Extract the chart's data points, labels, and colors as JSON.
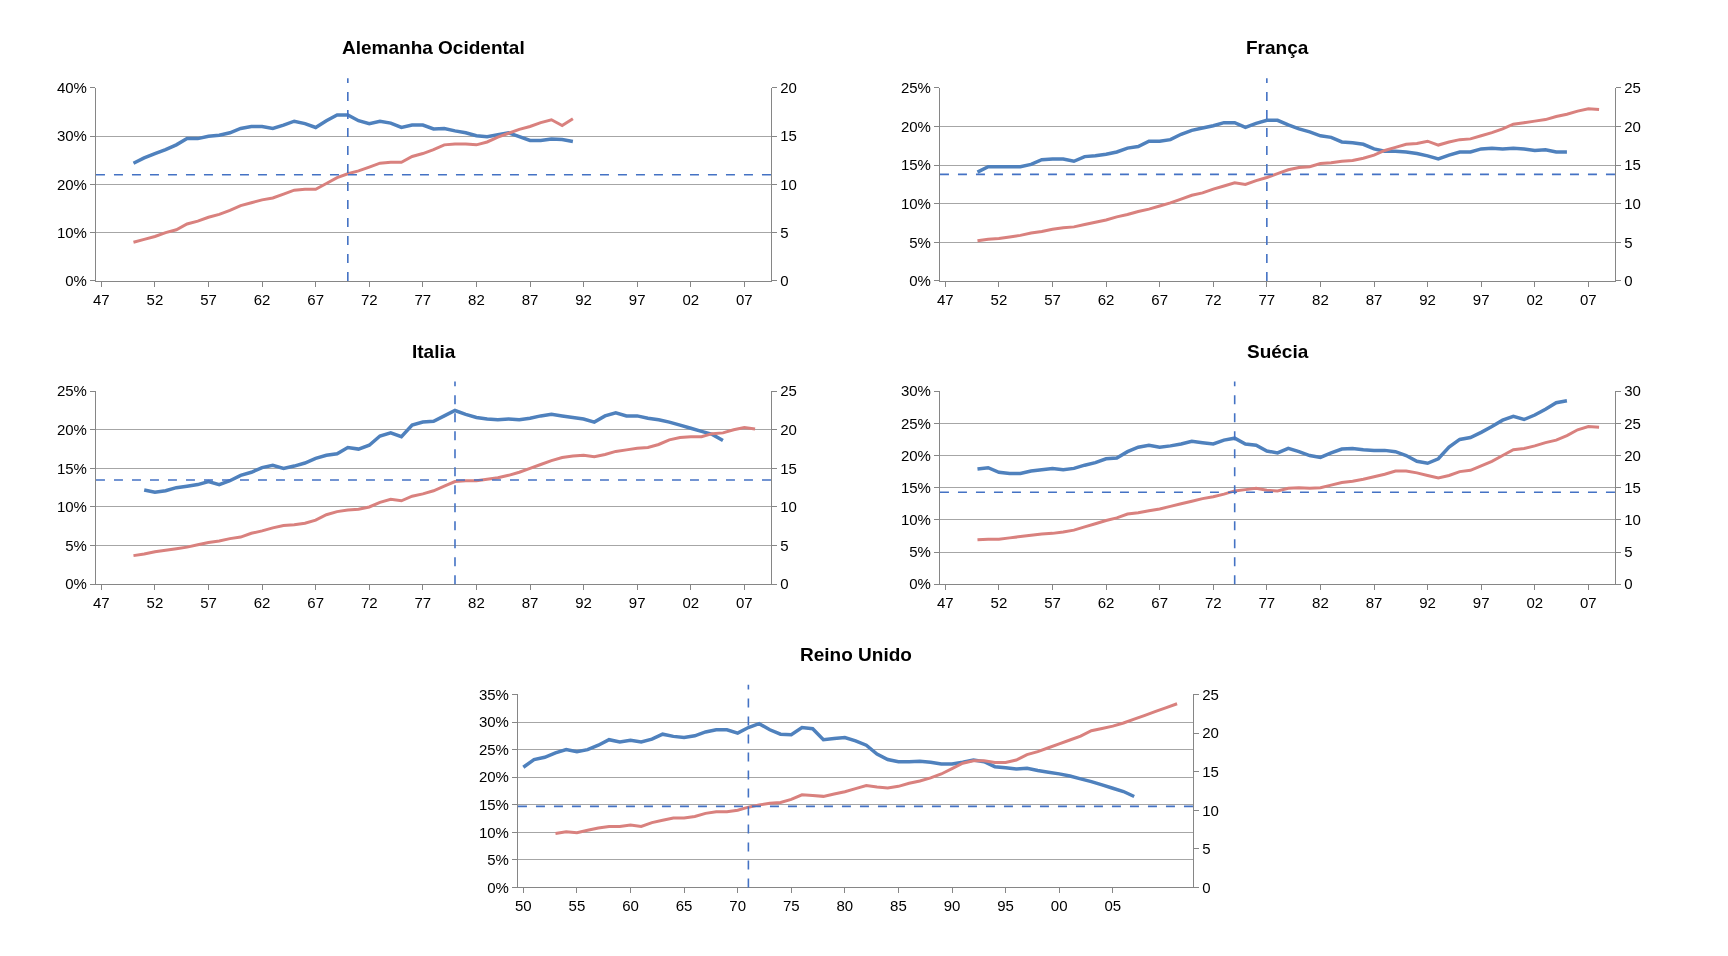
{
  "chart_data": [
    {
      "type": "line",
      "title": "Alemanha Ocidental",
      "grid": "y",
      "x": [
        1950,
        1951,
        1952,
        1953,
        1954,
        1955,
        1956,
        1957,
        1958,
        1959,
        1960,
        1961,
        1962,
        1963,
        1964,
        1965,
        1966,
        1967,
        1968,
        1969,
        1970,
        1971,
        1972,
        1973,
        1974,
        1975,
        1976,
        1977,
        1978,
        1979,
        1980,
        1981,
        1982,
        1983,
        1984,
        1985,
        1986,
        1987,
        1988,
        1989,
        1990,
        1991
      ],
      "xlim": [
        1946.5,
        2009.5
      ],
      "xticks": [
        {
          "value": 1947,
          "label": "47"
        },
        {
          "value": 1952,
          "label": "52"
        },
        {
          "value": 1957,
          "label": "57"
        },
        {
          "value": 1962,
          "label": "62"
        },
        {
          "value": 1967,
          "label": "67"
        },
        {
          "value": 1972,
          "label": "72"
        },
        {
          "value": 1977,
          "label": "77"
        },
        {
          "value": 1982,
          "label": "82"
        },
        {
          "value": 1987,
          "label": "87"
        },
        {
          "value": 1992,
          "label": "92"
        },
        {
          "value": 1997,
          "label": "97"
        },
        {
          "value": 2002,
          "label": "02"
        },
        {
          "value": 2007,
          "label": "07"
        }
      ],
      "ylim": [
        0,
        40
      ],
      "yticks": [
        {
          "value": 0,
          "label": "0%"
        },
        {
          "value": 10,
          "label": "10%"
        },
        {
          "value": 20,
          "label": "20%"
        },
        {
          "value": 30,
          "label": "30%"
        },
        {
          "value": 40,
          "label": "40%"
        }
      ],
      "y2lim": [
        0,
        20
      ],
      "y2ticks": [
        0,
        5,
        10,
        15,
        20
      ],
      "series": [
        {
          "color": "#4f81bd",
          "values": [
            24.4,
            25.5,
            26.4,
            27.2,
            28.2,
            29.5,
            29.5,
            30,
            30.2,
            30.7,
            31.6,
            32,
            32,
            31.6,
            32.3,
            33.1,
            32.6,
            31.8,
            33.2,
            34.4,
            34.4,
            33.2,
            32.6,
            33.1,
            32.7,
            31.8,
            32.3,
            32.3,
            31.5,
            31.6,
            31.1,
            30.7,
            30.1,
            29.9,
            30.3,
            30.7,
            29.9,
            29.1,
            29.1,
            29.4,
            29.3,
            28.9
          ]
        },
        {
          "color": "#d9817e",
          "axis": "y2",
          "values": [
            4.0,
            4.3,
            4.6,
            5.0,
            5.3,
            5.9,
            6.2,
            6.6,
            6.9,
            7.3,
            7.8,
            8.1,
            8.4,
            8.6,
            9.0,
            9.4,
            9.5,
            9.5,
            10.1,
            10.7,
            11.1,
            11.4,
            11.8,
            12.2,
            12.3,
            12.3,
            12.9,
            13.2,
            13.6,
            14.1,
            14.2,
            14.2,
            14.1,
            14.4,
            14.9,
            15.3,
            15.7,
            16.0,
            16.4,
            16.7,
            16.1,
            16.8
          ]
        }
      ],
      "ref_lines": [
        {
          "axis": "x",
          "value": 1970,
          "color": "#4472c4",
          "line_style": "dashed"
        },
        {
          "axis": "y2",
          "value": 11,
          "color": "#4472c4",
          "line_style": "dashed"
        }
      ]
    },
    {
      "type": "line",
      "title": "França",
      "grid": "y",
      "x": [
        1950,
        1951,
        1952,
        1953,
        1954,
        1955,
        1956,
        1957,
        1958,
        1959,
        1960,
        1961,
        1962,
        1963,
        1964,
        1965,
        1966,
        1967,
        1968,
        1969,
        1970,
        1971,
        1972,
        1973,
        1974,
        1975,
        1976,
        1977,
        1978,
        1979,
        1980,
        1981,
        1982,
        1983,
        1984,
        1985,
        1986,
        1987,
        1988,
        1989,
        1990,
        1991,
        1992,
        1993,
        1994,
        1995,
        1996,
        1997,
        1998,
        1999,
        2000,
        2001,
        2002,
        2003,
        2004,
        2005,
        2006,
        2007,
        2008
      ],
      "xlim": [
        1946.5,
        2009.5
      ],
      "xticks": [
        {
          "value": 1947,
          "label": "47"
        },
        {
          "value": 1952,
          "label": "52"
        },
        {
          "value": 1957,
          "label": "57"
        },
        {
          "value": 1962,
          "label": "62"
        },
        {
          "value": 1967,
          "label": "67"
        },
        {
          "value": 1972,
          "label": "72"
        },
        {
          "value": 1977,
          "label": "77"
        },
        {
          "value": 1982,
          "label": "82"
        },
        {
          "value": 1987,
          "label": "87"
        },
        {
          "value": 1992,
          "label": "92"
        },
        {
          "value": 1997,
          "label": "97"
        },
        {
          "value": 2002,
          "label": "02"
        },
        {
          "value": 2007,
          "label": "07"
        }
      ],
      "ylim": [
        0,
        25
      ],
      "yticks": [
        {
          "value": 0,
          "label": "0%"
        },
        {
          "value": 5,
          "label": "5%"
        },
        {
          "value": 10,
          "label": "10%"
        },
        {
          "value": 15,
          "label": "15%"
        },
        {
          "value": 20,
          "label": "20%"
        },
        {
          "value": 25,
          "label": "25%"
        }
      ],
      "y2lim": [
        0,
        25
      ],
      "y2ticks": [
        0,
        5,
        10,
        15,
        20,
        25
      ],
      "series": [
        {
          "color": "#4f81bd",
          "values": [
            14.1,
            14.8,
            14.8,
            14.8,
            14.8,
            15.1,
            15.7,
            15.8,
            15.8,
            15.5,
            16.1,
            16.2,
            16.4,
            16.7,
            17.2,
            17.4,
            18.1,
            18.1,
            18.3,
            19.0,
            19.5,
            19.8,
            20.1,
            20.5,
            20.5,
            19.9,
            20.4,
            20.8,
            20.8,
            20.2,
            19.7,
            19.3,
            18.8,
            18.6,
            18.0,
            17.9,
            17.7,
            17.1,
            16.8,
            16.8,
            16.7,
            16.5,
            16.2,
            15.8,
            16.3,
            16.7,
            16.7,
            17.1,
            17.2,
            17.1,
            17.2,
            17.1,
            16.9,
            17.0,
            16.7,
            16.7,
            null,
            null,
            null
          ]
        },
        {
          "color": "#d9817e",
          "axis": "y2",
          "values": [
            5.2,
            5.4,
            5.5,
            5.7,
            5.9,
            6.2,
            6.4,
            6.7,
            6.9,
            7.0,
            7.3,
            7.6,
            7.9,
            8.3,
            8.6,
            9.0,
            9.3,
            9.7,
            10.1,
            10.6,
            11.1,
            11.4,
            11.9,
            12.3,
            12.7,
            12.5,
            13.0,
            13.4,
            13.9,
            14.4,
            14.7,
            14.8,
            15.2,
            15.3,
            15.5,
            15.6,
            15.9,
            16.3,
            16.9,
            17.3,
            17.7,
            17.8,
            18.1,
            17.6,
            18.0,
            18.3,
            18.4,
            18.8,
            19.2,
            19.7,
            20.3,
            20.5,
            20.7,
            20.9,
            21.3,
            21.6,
            22.0,
            22.3,
            22.2
          ]
        }
      ],
      "ref_lines": [
        {
          "axis": "x",
          "value": 1977,
          "color": "#4472c4",
          "line_style": "dashed"
        },
        {
          "axis": "y2",
          "value": 13.8,
          "color": "#4472c4",
          "line_style": "dashed"
        }
      ]
    },
    {
      "type": "line",
      "title": "Italia",
      "grid": "y",
      "x": [
        1950,
        1951,
        1952,
        1953,
        1954,
        1955,
        1956,
        1957,
        1958,
        1959,
        1960,
        1961,
        1962,
        1963,
        1964,
        1965,
        1966,
        1967,
        1968,
        1969,
        1970,
        1971,
        1972,
        1973,
        1974,
        1975,
        1976,
        1977,
        1978,
        1979,
        1980,
        1981,
        1982,
        1983,
        1984,
        1985,
        1986,
        1987,
        1988,
        1989,
        1990,
        1991,
        1992,
        1993,
        1994,
        1995,
        1996,
        1997,
        1998,
        1999,
        2000,
        2001,
        2002,
        2003,
        2004,
        2005,
        2006,
        2007,
        2008
      ],
      "xlim": [
        1946.5,
        2009.5
      ],
      "xticks": [
        {
          "value": 1947,
          "label": "47"
        },
        {
          "value": 1952,
          "label": "52"
        },
        {
          "value": 1957,
          "label": "57"
        },
        {
          "value": 1962,
          "label": "62"
        },
        {
          "value": 1967,
          "label": "67"
        },
        {
          "value": 1972,
          "label": "72"
        },
        {
          "value": 1977,
          "label": "77"
        },
        {
          "value": 1982,
          "label": "82"
        },
        {
          "value": 1987,
          "label": "87"
        },
        {
          "value": 1992,
          "label": "92"
        },
        {
          "value": 1997,
          "label": "97"
        },
        {
          "value": 2002,
          "label": "02"
        },
        {
          "value": 2007,
          "label": "07"
        }
      ],
      "ylim": [
        0,
        25
      ],
      "yticks": [
        {
          "value": 0,
          "label": "0%"
        },
        {
          "value": 5,
          "label": "5%"
        },
        {
          "value": 10,
          "label": "10%"
        },
        {
          "value": 15,
          "label": "15%"
        },
        {
          "value": 20,
          "label": "20%"
        },
        {
          "value": 25,
          "label": "25%"
        }
      ],
      "y2lim": [
        0,
        25
      ],
      "y2ticks": [
        0,
        5,
        10,
        15,
        20,
        25
      ],
      "series": [
        {
          "color": "#4f81bd",
          "values": [
            null,
            12.2,
            11.9,
            12.1,
            12.5,
            12.7,
            12.9,
            13.3,
            12.9,
            13.4,
            14.1,
            14.5,
            15.1,
            15.4,
            15.0,
            15.3,
            15.7,
            16.3,
            16.7,
            16.9,
            17.7,
            17.5,
            18.0,
            19.2,
            19.6,
            19.1,
            20.6,
            21.0,
            21.1,
            21.8,
            22.5,
            22.0,
            21.6,
            21.4,
            21.3,
            21.4,
            21.3,
            21.5,
            21.8,
            22.0,
            21.8,
            21.6,
            21.4,
            21.0,
            21.8,
            22.2,
            21.8,
            21.8,
            21.5,
            21.3,
            21.0,
            20.6,
            20.2,
            19.8,
            19.4,
            18.6,
            null,
            null,
            null
          ]
        },
        {
          "color": "#d9817e",
          "axis": "y2",
          "values": [
            3.7,
            3.9,
            4.2,
            4.4,
            4.6,
            4.8,
            5.1,
            5.4,
            5.6,
            5.9,
            6.1,
            6.6,
            6.9,
            7.3,
            7.6,
            7.7,
            7.9,
            8.3,
            9.0,
            9.4,
            9.6,
            9.7,
            10.0,
            10.6,
            11.0,
            10.8,
            11.4,
            11.7,
            12.1,
            12.7,
            13.3,
            13.4,
            13.4,
            13.6,
            13.8,
            14.1,
            14.5,
            15.0,
            15.5,
            16.0,
            16.4,
            16.6,
            16.7,
            16.5,
            16.8,
            17.2,
            17.4,
            17.6,
            17.7,
            18.1,
            18.7,
            19.0,
            19.1,
            19.1,
            19.5,
            19.6,
            20.0,
            20.3,
            20.1
          ]
        }
      ],
      "ref_lines": [
        {
          "axis": "x",
          "value": 1980,
          "color": "#4472c4",
          "line_style": "dashed"
        },
        {
          "axis": "y2",
          "value": 13.5,
          "color": "#4472c4",
          "line_style": "dashed"
        }
      ]
    },
    {
      "type": "line",
      "title": "Suécia",
      "grid": "y",
      "x": [
        1950,
        1951,
        1952,
        1953,
        1954,
        1955,
        1956,
        1957,
        1958,
        1959,
        1960,
        1961,
        1962,
        1963,
        1964,
        1965,
        1966,
        1967,
        1968,
        1969,
        1970,
        1971,
        1972,
        1973,
        1974,
        1975,
        1976,
        1977,
        1978,
        1979,
        1980,
        1981,
        1982,
        1983,
        1984,
        1985,
        1986,
        1987,
        1988,
        1989,
        1990,
        1991,
        1992,
        1993,
        1994,
        1995,
        1996,
        1997,
        1998,
        1999,
        2000,
        2001,
        2002,
        2003,
        2004,
        2005,
        2006,
        2007,
        2008
      ],
      "xlim": [
        1946.5,
        2009.5
      ],
      "xticks": [
        {
          "value": 1947,
          "label": "47"
        },
        {
          "value": 1952,
          "label": "52"
        },
        {
          "value": 1957,
          "label": "57"
        },
        {
          "value": 1962,
          "label": "62"
        },
        {
          "value": 1967,
          "label": "67"
        },
        {
          "value": 1972,
          "label": "72"
        },
        {
          "value": 1977,
          "label": "77"
        },
        {
          "value": 1982,
          "label": "82"
        },
        {
          "value": 1987,
          "label": "87"
        },
        {
          "value": 1992,
          "label": "92"
        },
        {
          "value": 1997,
          "label": "97"
        },
        {
          "value": 2002,
          "label": "02"
        },
        {
          "value": 2007,
          "label": "07"
        }
      ],
      "ylim": [
        0,
        30
      ],
      "yticks": [
        {
          "value": 0,
          "label": "0%"
        },
        {
          "value": 5,
          "label": "5%"
        },
        {
          "value": 10,
          "label": "10%"
        },
        {
          "value": 15,
          "label": "15%"
        },
        {
          "value": 20,
          "label": "20%"
        },
        {
          "value": 25,
          "label": "25%"
        },
        {
          "value": 30,
          "label": "30%"
        }
      ],
      "y2lim": [
        0,
        30
      ],
      "y2ticks": [
        0,
        5,
        10,
        15,
        20,
        25,
        30
      ],
      "series": [
        {
          "color": "#4f81bd",
          "values": [
            17.9,
            18.1,
            17.4,
            17.2,
            17.2,
            17.6,
            17.8,
            18.0,
            17.8,
            18.0,
            18.5,
            18.9,
            19.5,
            19.6,
            20.6,
            21.3,
            21.6,
            21.3,
            21.5,
            21.8,
            22.2,
            22.0,
            21.8,
            22.4,
            22.7,
            21.8,
            21.6,
            20.7,
            20.4,
            21.1,
            20.6,
            20.0,
            19.7,
            20.4,
            21.0,
            21.1,
            20.9,
            20.8,
            20.8,
            20.6,
            20.0,
            19.1,
            18.8,
            19.5,
            21.3,
            22.5,
            22.8,
            23.6,
            24.5,
            25.5,
            26.1,
            25.6,
            26.3,
            27.2,
            28.2,
            28.5,
            null,
            null,
            null
          ]
        },
        {
          "color": "#d9817e",
          "axis": "y2",
          "values": [
            6.9,
            7.0,
            7.0,
            7.2,
            7.4,
            7.6,
            7.8,
            7.9,
            8.1,
            8.4,
            8.9,
            9.4,
            9.9,
            10.3,
            10.9,
            11.1,
            11.4,
            11.7,
            12.1,
            12.5,
            12.9,
            13.3,
            13.6,
            14.0,
            14.5,
            14.7,
            14.9,
            14.6,
            14.5,
            14.9,
            15.0,
            14.9,
            15.0,
            15.4,
            15.8,
            16.0,
            16.3,
            16.7,
            17.1,
            17.6,
            17.6,
            17.3,
            16.9,
            16.5,
            16.9,
            17.5,
            17.7,
            18.4,
            19.1,
            20.0,
            20.9,
            21.1,
            21.5,
            22.0,
            22.4,
            23.1,
            24.0,
            24.5,
            24.4
          ]
        }
      ],
      "ref_lines": [
        {
          "axis": "x",
          "value": 1974,
          "color": "#4472c4",
          "line_style": "dashed"
        },
        {
          "axis": "y2",
          "value": 14.3,
          "color": "#4472c4",
          "line_style": "dashed"
        }
      ]
    },
    {
      "type": "line",
      "title": "Reino Unido",
      "grid": "y",
      "x": [
        1950,
        1951,
        1952,
        1953,
        1954,
        1955,
        1956,
        1957,
        1958,
        1959,
        1960,
        1961,
        1962,
        1963,
        1964,
        1965,
        1966,
        1967,
        1968,
        1969,
        1970,
        1971,
        1972,
        1973,
        1974,
        1975,
        1976,
        1977,
        1978,
        1979,
        1980,
        1981,
        1982,
        1983,
        1984,
        1985,
        1986,
        1987,
        1988,
        1989,
        1990,
        1991,
        1992,
        1993,
        1994,
        1995,
        1996,
        1997,
        1998,
        1999,
        2000,
        2001,
        2002,
        2003,
        2004,
        2005,
        2006,
        2007,
        2008,
        2009,
        2010,
        2011
      ],
      "xlim": [
        1949.5,
        2012.5
      ],
      "xticks": [
        {
          "value": 1950,
          "label": "50"
        },
        {
          "value": 1955,
          "label": "55"
        },
        {
          "value": 1960,
          "label": "60"
        },
        {
          "value": 1965,
          "label": "65"
        },
        {
          "value": 1970,
          "label": "70"
        },
        {
          "value": 1975,
          "label": "75"
        },
        {
          "value": 1980,
          "label": "80"
        },
        {
          "value": 1985,
          "label": "85"
        },
        {
          "value": 1990,
          "label": "90"
        },
        {
          "value": 1995,
          "label": "95"
        },
        {
          "value": 2000,
          "label": "00"
        },
        {
          "value": 2005,
          "label": "05"
        }
      ],
      "ylim": [
        0,
        35
      ],
      "yticks": [
        {
          "value": 0,
          "label": "0%"
        },
        {
          "value": 5,
          "label": "5%"
        },
        {
          "value": 10,
          "label": "10%"
        },
        {
          "value": 15,
          "label": "15%"
        },
        {
          "value": 20,
          "label": "20%"
        },
        {
          "value": 25,
          "label": "25%"
        },
        {
          "value": 30,
          "label": "30%"
        },
        {
          "value": 35,
          "label": "35%"
        }
      ],
      "y2lim": [
        0,
        25
      ],
      "y2ticks": [
        0,
        5,
        10,
        15,
        20,
        25
      ],
      "series": [
        {
          "color": "#4f81bd",
          "values": [
            21.8,
            23.2,
            23.6,
            24.4,
            25.0,
            24.6,
            25.0,
            25.8,
            26.8,
            26.4,
            26.7,
            26.4,
            26.9,
            27.8,
            27.4,
            27.2,
            27.5,
            28.2,
            28.6,
            28.6,
            28.0,
            29.0,
            29.7,
            28.6,
            27.8,
            27.7,
            29.0,
            28.8,
            26.8,
            27.0,
            27.2,
            26.6,
            25.8,
            24.2,
            23.2,
            22.8,
            22.8,
            22.9,
            22.7,
            22.4,
            22.4,
            22.7,
            23.1,
            22.8,
            21.9,
            21.7,
            21.5,
            21.6,
            21.2,
            20.9,
            20.6,
            20.2,
            19.7,
            19.2,
            18.6,
            18.0,
            17.4,
            16.5,
            null,
            null,
            null,
            null
          ]
        },
        {
          "color": "#d9817e",
          "axis": "y2",
          "values": [
            null,
            null,
            null,
            7.0,
            7.2,
            7.1,
            7.4,
            7.7,
            7.9,
            7.9,
            8.1,
            7.9,
            8.4,
            8.7,
            9.0,
            9.0,
            9.2,
            9.6,
            9.8,
            9.8,
            10.0,
            10.4,
            10.7,
            10.9,
            11.0,
            11.4,
            12.0,
            11.9,
            11.8,
            12.1,
            12.4,
            12.8,
            13.2,
            13.0,
            12.9,
            13.1,
            13.5,
            13.8,
            14.2,
            14.7,
            15.4,
            16.1,
            16.4,
            16.4,
            16.2,
            16.2,
            16.5,
            17.2,
            17.6,
            18.1,
            18.6,
            19.1,
            19.6,
            20.3,
            20.6,
            20.9,
            21.3,
            21.8,
            22.3,
            22.8,
            23.3,
            23.8
          ]
        }
      ],
      "ref_lines": [
        {
          "axis": "x",
          "value": 1971,
          "color": "#4472c4",
          "line_style": "dashed"
        },
        {
          "axis": "y2",
          "value": 10.5,
          "color": "#4472c4",
          "line_style": "dashed"
        }
      ]
    }
  ]
}
